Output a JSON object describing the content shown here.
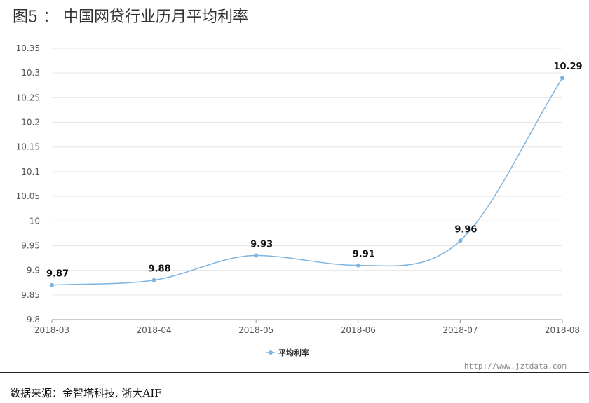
{
  "header": {
    "title": "图5 ： 中国网贷行业历月平均利率"
  },
  "footer": {
    "source": "数据来源：金智塔科技, 浙大AIF",
    "watermark": "http://www.jztdata.com"
  },
  "chart_data": {
    "type": "line",
    "categories": [
      "2018-03",
      "2018-04",
      "2018-05",
      "2018-06",
      "2018-07",
      "2018-08"
    ],
    "series": [
      {
        "name": "平均利率",
        "values": [
          9.87,
          9.88,
          9.93,
          9.91,
          9.96,
          10.29
        ],
        "color": "#7eb4e0"
      }
    ],
    "data_labels": [
      "9.87",
      "9.88",
      "9.93",
      "9.91",
      "9.96",
      "10.29"
    ],
    "y_ticks": [
      "9.8",
      "9.85",
      "9.9",
      "9.95",
      "10",
      "10.05",
      "10.1",
      "10.15",
      "10.2",
      "10.25",
      "10.3",
      "10.35"
    ],
    "y_tick_values": [
      9.8,
      9.85,
      9.9,
      9.95,
      10,
      10.05,
      10.1,
      10.15,
      10.2,
      10.25,
      10.3,
      10.35
    ],
    "ylim": [
      9.8,
      10.35
    ],
    "grid": true,
    "legend_position": "bottom-center",
    "smooth": true
  }
}
